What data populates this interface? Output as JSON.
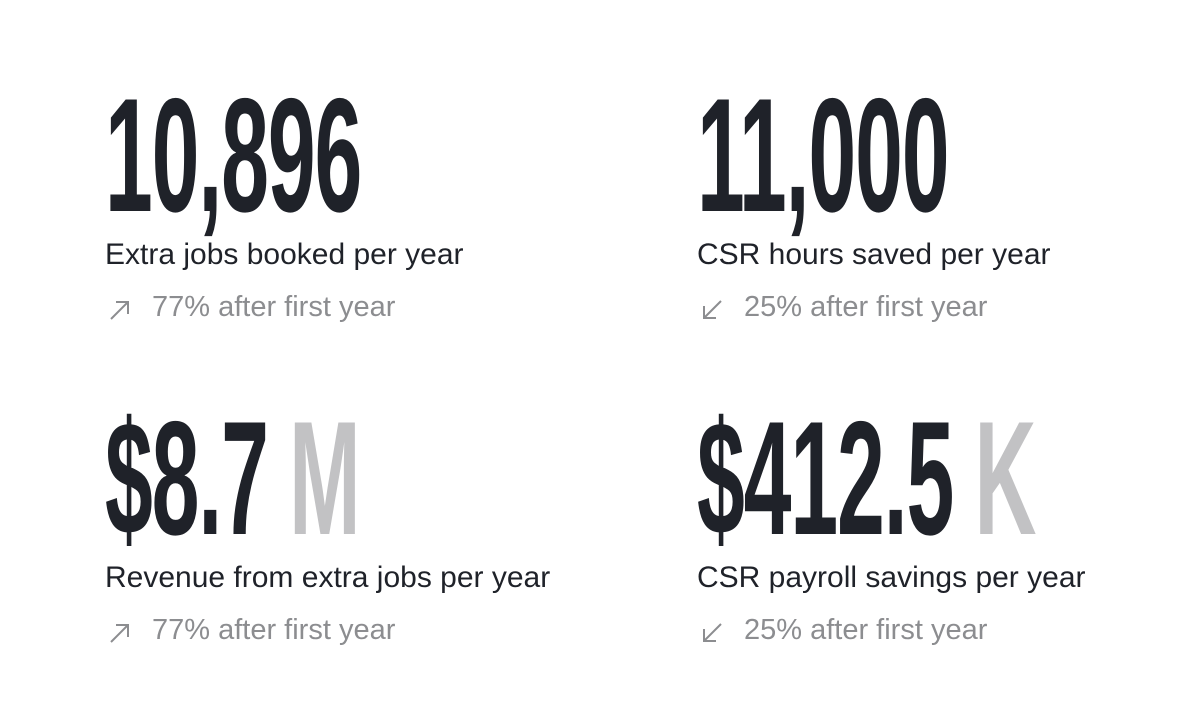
{
  "stats": [
    {
      "value": "10,896",
      "label": "Extra jobs booked per year",
      "change": "77% after first year"
    },
    {
      "value": "11,000",
      "label": "CSR hours saved per year",
      "change": "25% after first year"
    },
    {
      "value": "$8.7",
      "suffix": "M",
      "label": "Revenue from extra jobs per year",
      "change": "77% after first year"
    },
    {
      "value": "$412.5",
      "suffix": "K",
      "label": "CSR payroll savings per year",
      "change": "25% after first year"
    }
  ]
}
